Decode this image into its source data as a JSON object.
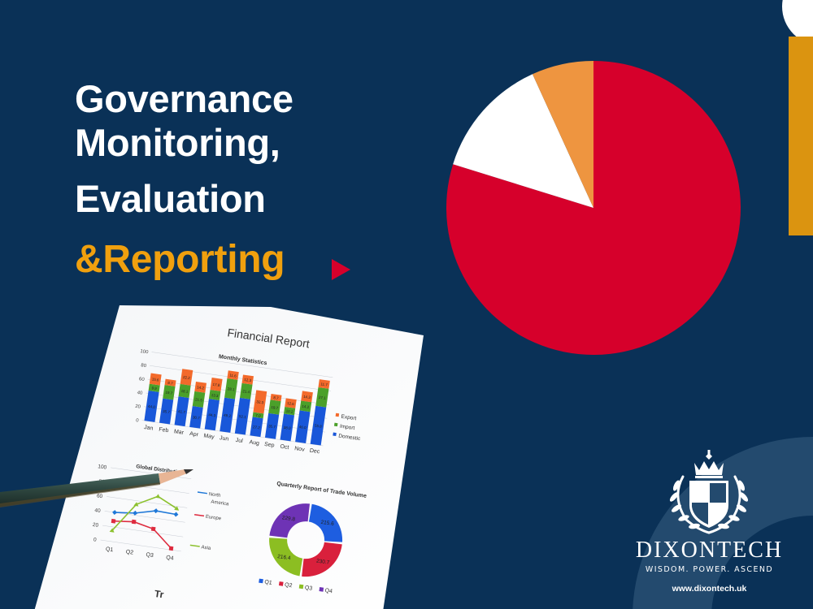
{
  "headline": {
    "line1": "Governance",
    "line2": "Monitoring,",
    "line3": "Evaluation",
    "line4": "&Reporting"
  },
  "colors": {
    "background": "#0a3157",
    "headline_text": "#ffffff",
    "accent_orange": "#f0a00e",
    "accent_red": "#d6002b",
    "side_bar": "#db9410",
    "pie_red": "#d6002b",
    "pie_white": "#ffffff",
    "pie_orange": "#ee9540",
    "ring": "#234a6e"
  },
  "paper": {
    "title": "Financial Report",
    "bottom_partial_text": "Tr"
  },
  "brand": {
    "name": "DIXONTECH",
    "tagline": "WISDOM.  POWER. ASCEND",
    "url": "www.dixontech.uk"
  },
  "chart_data": [
    {
      "type": "pie",
      "title": "",
      "categories": [
        "Red",
        "White",
        "Orange"
      ],
      "values": [
        79.8,
        13.4,
        6.8
      ],
      "colors": [
        "#d6002b",
        "#ffffff",
        "#ee9540"
      ]
    },
    {
      "type": "bar",
      "stacked": true,
      "title": "Monthly Statistics",
      "categories": [
        "Jan",
        "Feb",
        "Mar",
        "Apr",
        "May",
        "Jun",
        "Jul",
        "Aug",
        "Sep",
        "Oct",
        "Nov",
        "Dec"
      ],
      "series": [
        {
          "name": "Domestic",
          "color": "#1957d9",
          "values": [
            44.0,
            35.7,
            41.7,
            30.7,
            44.3,
            49.2,
            52.1,
            27.2,
            35.7,
            38.0,
            46.0,
            55.8
          ]
        },
        {
          "name": "Import",
          "color": "#4ba02a",
          "values": [
            9.9,
            19.7,
            18.1,
            21.5,
            13.3,
            28.1,
            21.4,
            7.0,
            19.7,
            10.2,
            14.2,
            27.1
          ]
        },
        {
          "name": "Export",
          "color": "#f36a2b",
          "values": [
            15.6,
            8.7,
            22.2,
            14.2,
            17.8,
            11.6,
            12.3,
            32.3,
            8.7,
            12.6,
            14.3,
            11.7
          ]
        }
      ],
      "legend": [
        "Export",
        "Import",
        "Domestic"
      ],
      "yticks": [
        0,
        20,
        40,
        60,
        80,
        100
      ],
      "ylim": [
        0,
        100
      ],
      "grid": true,
      "legend_position": "right"
    },
    {
      "type": "line",
      "title": "Global Distribution",
      "categories": [
        "Q1",
        "Q2",
        "Q3",
        "Q4"
      ],
      "series": [
        {
          "name": "North America",
          "color": "#1f78d8",
          "marker": "diamond",
          "values": [
            40,
            43,
            50,
            49
          ]
        },
        {
          "name": "Europe",
          "color": "#de2b3f",
          "marker": "square",
          "values": [
            28,
            31,
            25,
            2
          ]
        },
        {
          "name": "Asia",
          "color": "#8cc12e",
          "marker": "triangle",
          "values": [
            15,
            55,
            70,
            57
          ]
        }
      ],
      "yticks": [
        0,
        20,
        40,
        60,
        80,
        100
      ],
      "ylim": [
        0,
        100
      ],
      "grid": true,
      "legend_position": "right"
    },
    {
      "type": "pie",
      "donut": true,
      "title": "Quarterly Report of Trade Volume",
      "categories": [
        "Q1",
        "Q2",
        "Q3",
        "Q4"
      ],
      "values": [
        215.6,
        230.7,
        216.4,
        229.8
      ],
      "colors": [
        "#1e5ee0",
        "#d9203c",
        "#8cbe22",
        "#6e33b5"
      ],
      "legend_position": "bottom"
    }
  ]
}
